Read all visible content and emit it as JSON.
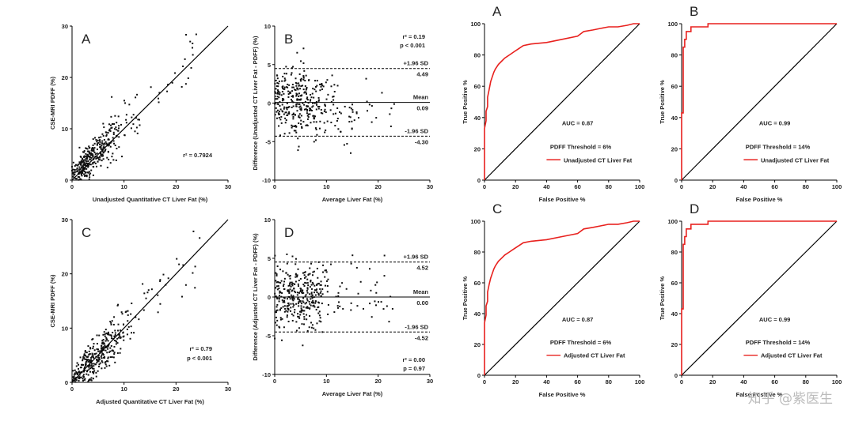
{
  "chart_data": [
    {
      "type": "scatter",
      "panel": "A",
      "xlabel": "Unadjusted Quantitative CT Liver Fat (%)",
      "ylabel": "CSE-MRI PDFF (%)",
      "xlim": [
        0,
        30
      ],
      "ylim": [
        0,
        30
      ],
      "xticks": [
        "0",
        "10",
        "20",
        "30"
      ],
      "yticks": [
        "0",
        "10",
        "20",
        "30"
      ],
      "stat_line1": "r² = 0.7924",
      "stat_line2": "",
      "fit": {
        "slope": 1.0,
        "intercept": 0
      },
      "points": {
        "n": 380,
        "seed": 11,
        "x_center": 4,
        "x_spread": 2.8,
        "y_slope": 1.05,
        "y_offset": 0.5,
        "noise": 2.2
      }
    },
    {
      "type": "scatter",
      "panel": "B",
      "xlabel": "Average Liver Fat (%)",
      "ylabel": "Difference (Unadjusted CT Liver Fat - PDFF) (%)",
      "xlim": [
        0,
        30
      ],
      "ylim": [
        -10,
        10
      ],
      "xticks": [
        "0",
        "10",
        "20",
        "30"
      ],
      "yticks": [
        "-10",
        "-5",
        "0",
        "5",
        "10"
      ],
      "stat_line1": "r² = 0.19",
      "stat_line2": "p < 0.001",
      "reference_lines": [
        {
          "value": 4.49,
          "label": "+1.96 SD",
          "value_label": "4.49",
          "style": "dashed"
        },
        {
          "value": 0.09,
          "label": "Mean",
          "value_label": "0.09",
          "style": "solid"
        },
        {
          "value": -4.3,
          "label": "-1.96 SD",
          "value_label": "-4.30",
          "style": "dashed"
        }
      ],
      "points": {
        "n": 380,
        "seed": 23,
        "x_center": 4.5,
        "x_spread": 3.5,
        "trend": -0.12,
        "noise": 2.1
      }
    },
    {
      "type": "line",
      "panel": "A",
      "xlabel": "False Positive %",
      "ylabel": "True Positive %",
      "xlim": [
        0,
        100
      ],
      "ylim": [
        0,
        100
      ],
      "xticks": [
        "0",
        "20",
        "40",
        "60",
        "80",
        "100"
      ],
      "yticks": [
        "0",
        "20",
        "40",
        "60",
        "80",
        "100"
      ],
      "auc_label": "AUC = 0.87",
      "threshold_label": "PDFF Threshold = 6%",
      "legend": "Unadjusted CT Liver Fat",
      "series": [
        {
          "name": "Unadjusted CT Liver Fat",
          "color": "#e8211e",
          "x": [
            0,
            0,
            1,
            1,
            2,
            2,
            3,
            4,
            5,
            6,
            7,
            9,
            11,
            13,
            16,
            19,
            22,
            25,
            30,
            40,
            50,
            60,
            64,
            70,
            75,
            80,
            86,
            92,
            96,
            100
          ],
          "y": [
            0,
            33,
            38,
            44,
            47,
            53,
            58,
            63,
            66,
            69,
            71,
            74,
            76,
            78,
            80,
            82,
            84,
            86,
            87,
            88,
            90,
            92,
            95,
            96,
            97,
            98,
            98,
            99,
            100,
            100
          ]
        }
      ]
    },
    {
      "type": "line",
      "panel": "B",
      "xlabel": "False Positive %",
      "ylabel": "True Positive %",
      "xlim": [
        0,
        100
      ],
      "ylim": [
        0,
        100
      ],
      "xticks": [
        "0",
        "20",
        "40",
        "60",
        "80",
        "100"
      ],
      "yticks": [
        "0",
        "20",
        "40",
        "60",
        "80",
        "100"
      ],
      "auc_label": "AUC = 0.99",
      "threshold_label": "PDFF Threshold = 14%",
      "legend": "Unadjusted CT Liver Fat",
      "series": [
        {
          "name": "Unadjusted CT Liver Fat",
          "color": "#e8211e",
          "x": [
            0,
            0,
            1,
            1,
            2,
            2,
            3,
            3,
            6,
            6,
            17,
            17,
            100
          ],
          "y": [
            0,
            43,
            43,
            85,
            85,
            90,
            90,
            95,
            95,
            98,
            98,
            100,
            100
          ]
        }
      ]
    },
    {
      "type": "scatter",
      "panel": "C",
      "xlabel": "Adjusted Quantitative CT Liver Fat (%)",
      "ylabel": "CSE-MRI PDFF (%)",
      "xlim": [
        0,
        30
      ],
      "ylim": [
        0,
        30
      ],
      "xticks": [
        "0",
        "10",
        "20",
        "30"
      ],
      "yticks": [
        "0",
        "10",
        "20",
        "30"
      ],
      "stat_line1": "r² = 0.79",
      "stat_line2": "p < 0.001",
      "fit": {
        "slope": 1.0,
        "intercept": 0
      },
      "points": {
        "n": 380,
        "seed": 37,
        "x_center": 4.5,
        "x_spread": 3.0,
        "y_slope": 1.0,
        "y_offset": 0,
        "noise": 2.1
      }
    },
    {
      "type": "scatter",
      "panel": "D",
      "xlabel": "Average Liver Fat (%)",
      "ylabel": "Difference (Adjusted CT Liver Fat - PDFF) (%)",
      "xlim": [
        0,
        30
      ],
      "ylim": [
        -10,
        10
      ],
      "xticks": [
        "0",
        "10",
        "20",
        "30"
      ],
      "yticks": [
        "-10",
        "-5",
        "0",
        "5",
        "10"
      ],
      "stat_line1": "r² = 0.00",
      "stat_line2": "p = 0.97",
      "reference_lines": [
        {
          "value": 4.52,
          "label": "+1.96 SD",
          "value_label": "4.52",
          "style": "dashed"
        },
        {
          "value": 0.0,
          "label": "Mean",
          "value_label": "0.00",
          "style": "solid"
        },
        {
          "value": -4.52,
          "label": "-1.96 SD",
          "value_label": "-4.52",
          "style": "dashed"
        }
      ],
      "points": {
        "n": 380,
        "seed": 53,
        "x_center": 4.5,
        "x_spread": 3.5,
        "trend": 0,
        "noise": 2.2
      }
    },
    {
      "type": "line",
      "panel": "C",
      "xlabel": "False Positive %",
      "ylabel": "True Positive %",
      "xlim": [
        0,
        100
      ],
      "ylim": [
        0,
        100
      ],
      "xticks": [
        "0",
        "20",
        "40",
        "60",
        "80",
        "100"
      ],
      "yticks": [
        "0",
        "20",
        "40",
        "60",
        "80",
        "100"
      ],
      "auc_label": "AUC = 0.87",
      "threshold_label": "PDFF Threshold = 6%",
      "legend": "Adjusted CT Liver Fat",
      "series": [
        {
          "name": "Adjusted CT Liver Fat",
          "color": "#e8211e",
          "x": [
            0,
            0,
            1,
            1,
            2,
            2,
            3,
            4,
            5,
            6,
            7,
            9,
            11,
            13,
            16,
            19,
            22,
            25,
            30,
            40,
            50,
            60,
            64,
            70,
            75,
            80,
            86,
            92,
            96,
            100
          ],
          "y": [
            0,
            34,
            39,
            45,
            48,
            54,
            59,
            63,
            66,
            69,
            71,
            74,
            76,
            78,
            80,
            82,
            84,
            86,
            87,
            88,
            90,
            92,
            95,
            96,
            97,
            98,
            98,
            99,
            100,
            100
          ]
        }
      ]
    },
    {
      "type": "line",
      "panel": "D",
      "xlabel": "False Positive %",
      "ylabel": "True Positive %",
      "xlim": [
        0,
        100
      ],
      "ylim": [
        0,
        100
      ],
      "xticks": [
        "0",
        "20",
        "40",
        "60",
        "80",
        "100"
      ],
      "yticks": [
        "0",
        "20",
        "40",
        "60",
        "80",
        "100"
      ],
      "auc_label": "AUC = 0.99",
      "threshold_label": "PDFF Threshold = 14%",
      "legend": "Adjusted CT Liver Fat",
      "series": [
        {
          "name": "Adjusted CT Liver Fat",
          "color": "#e8211e",
          "x": [
            0,
            0,
            1,
            1,
            2,
            2,
            3,
            3,
            6,
            6,
            17,
            17,
            100
          ],
          "y": [
            0,
            43,
            43,
            85,
            85,
            90,
            90,
            95,
            95,
            98,
            98,
            100,
            100
          ]
        }
      ]
    }
  ],
  "watermark": "知乎 @紫医生"
}
